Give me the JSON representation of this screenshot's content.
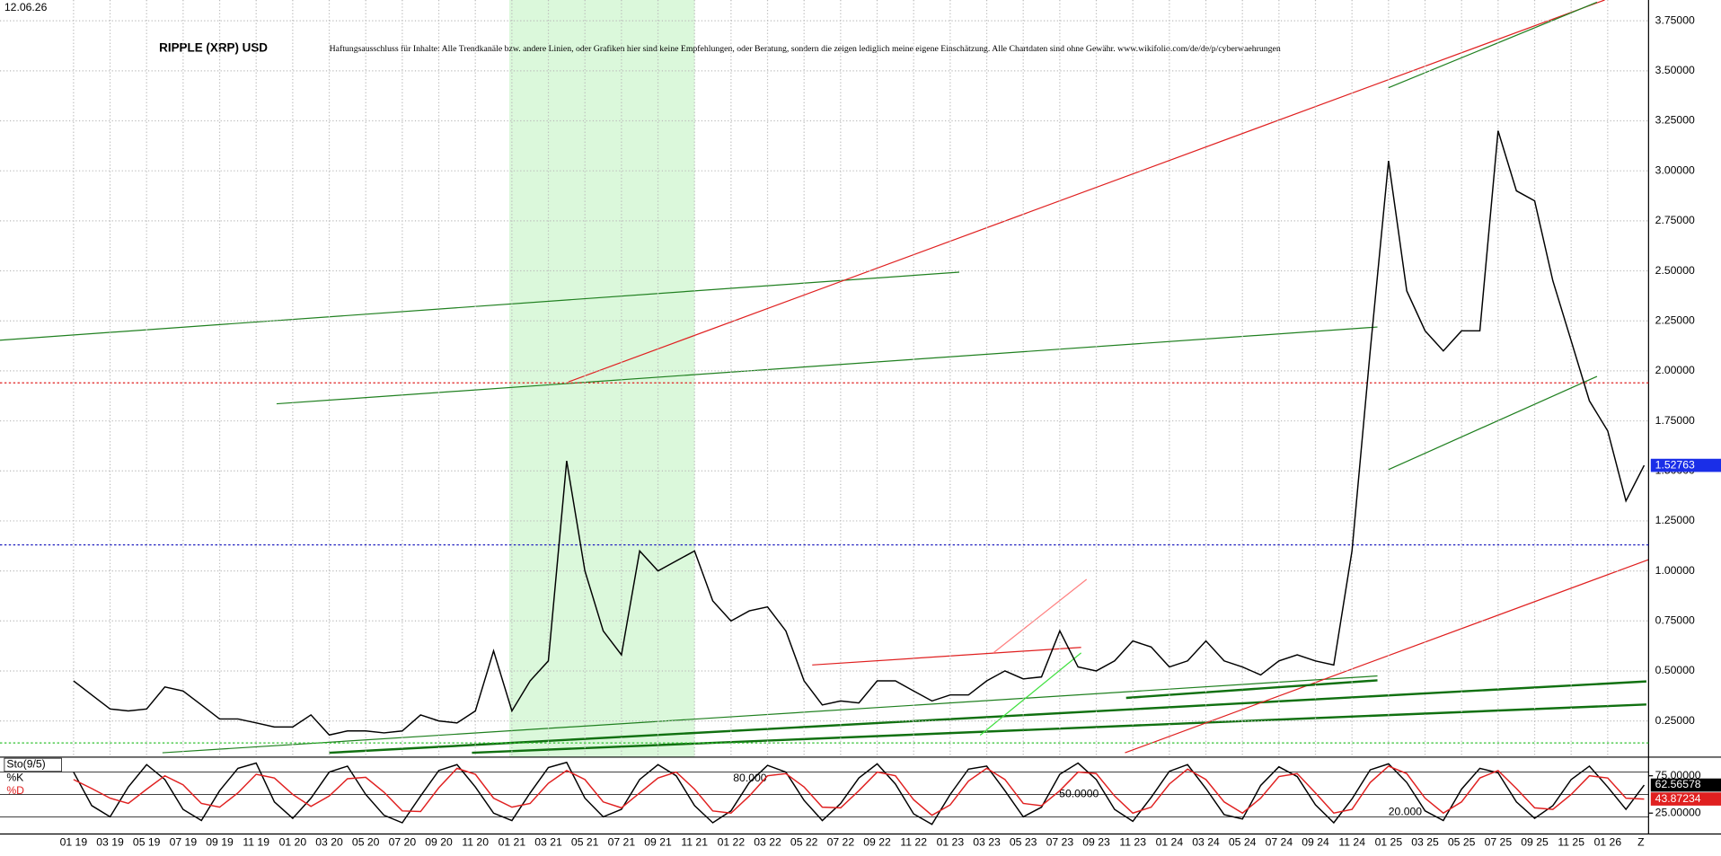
{
  "date_stamp": "12.06.26",
  "disclaimer": "Haftungsausschluss für Inhalte: Alle Trendkanäle bzw. andere Linien, oder Grafiken hier sind keine Empfehlungen, oder Beratung, sondern die zeigen lediglich meine eigene Einschätzung. Alle Chartdaten sind ohne Gewähr.  www.wikifolio.com/de/de/p/cyberwaehrungen",
  "x_axis_end_label": "Z",
  "chart_data": [
    {
      "type": "line",
      "title": "RIPPLE (XRP) USD",
      "grid": true,
      "categories": [
        "01 19",
        null,
        "03 19",
        null,
        "05 19",
        null,
        "07 19",
        null,
        "09 19",
        null,
        "11 19",
        null,
        "01 20",
        null,
        "03 20",
        null,
        "05 20",
        null,
        "07 20",
        null,
        "09 20",
        null,
        "11 20",
        null,
        "01 21",
        null,
        "03 21",
        null,
        "05 21",
        null,
        "07 21",
        null,
        "09 21",
        null,
        "11 21",
        null,
        "01 22",
        null,
        "03 22",
        null,
        "05 22",
        null,
        "07 22",
        null,
        "09 22",
        null,
        "11 22",
        null,
        "01 23",
        null,
        "03 23",
        null,
        "05 23",
        null,
        "07 23",
        null,
        "09 23",
        null,
        "11 23",
        null,
        "01 24",
        null,
        "03 24",
        null,
        "05 24",
        null,
        "07 24",
        null,
        "09 24",
        null,
        "11 24",
        null,
        "01 25",
        null,
        "03 25",
        null,
        "05 25",
        null,
        "07 25",
        null,
        "09 25",
        null,
        "11 25",
        null,
        "01 26",
        null,
        null
      ],
      "series": [
        {
          "name": "XRP",
          "color": "#000000",
          "values": [
            0.45,
            0.38,
            0.31,
            0.3,
            0.31,
            0.42,
            0.4,
            0.33,
            0.26,
            0.26,
            0.24,
            0.22,
            0.22,
            0.28,
            0.18,
            0.2,
            0.2,
            0.19,
            0.2,
            0.28,
            0.25,
            0.24,
            0.3,
            0.6,
            0.3,
            0.45,
            0.55,
            1.55,
            1.0,
            0.7,
            0.58,
            1.1,
            1.0,
            1.05,
            1.1,
            0.85,
            0.75,
            0.8,
            0.82,
            0.7,
            0.45,
            0.33,
            0.35,
            0.34,
            0.45,
            0.45,
            0.4,
            0.35,
            0.38,
            0.38,
            0.45,
            0.5,
            0.46,
            0.47,
            0.7,
            0.52,
            0.5,
            0.55,
            0.65,
            0.62,
            0.52,
            0.55,
            0.65,
            0.55,
            0.52,
            0.48,
            0.55,
            0.58,
            0.55,
            0.53,
            1.1,
            2.1,
            3.05,
            2.4,
            2.2,
            2.1,
            2.2,
            2.2,
            3.2,
            2.9,
            2.85,
            2.45,
            2.15,
            1.85,
            1.7,
            1.35,
            1.52763
          ]
        }
      ],
      "ylim": [
        0.069,
        3.854
      ],
      "yticks": [
        {
          "value": 0.25,
          "label": "0.25000"
        },
        {
          "value": 0.5,
          "label": "0.50000"
        },
        {
          "value": 0.75,
          "label": "0.75000"
        },
        {
          "value": 1,
          "label": "1.00000"
        },
        {
          "value": 1.25,
          "label": "1.25000"
        },
        {
          "value": 1.5,
          "label": "1.50000"
        },
        {
          "value": 1.75,
          "label": "1.75000"
        },
        {
          "value": 2,
          "label": "2.00000"
        },
        {
          "value": 2.25,
          "label": "2.25000"
        },
        {
          "value": 2.5,
          "label": "2.50000"
        },
        {
          "value": 2.75,
          "label": "2.75000"
        },
        {
          "value": 3,
          "label": "3.00000"
        },
        {
          "value": 3.25,
          "label": "3.25000"
        },
        {
          "value": 3.5,
          "label": "3.50000"
        },
        {
          "value": 3.75,
          "label": "3.75000"
        }
      ],
      "reference_lines": [
        {
          "value": 1.94,
          "color": "#e02020"
        },
        {
          "value": 1.13,
          "color": "#2020c0"
        },
        {
          "value": 0.14,
          "color": "#30c030"
        }
      ]
    },
    {
      "type": "line",
      "title": "Sto(9/5)",
      "ylim": [
        0,
        100
      ],
      "yticks": [
        {
          "value": 75,
          "label": "75.00000"
        },
        {
          "value": 25,
          "label": "25.00000"
        }
      ],
      "levels": [
        {
          "value": 80,
          "label": "80.000"
        },
        {
          "value": 50,
          "label": "50.0000"
        },
        {
          "value": 20,
          "label": "20.000"
        }
      ],
      "series": [
        {
          "name": "%K",
          "color": "#000000",
          "values": [
            80,
            35,
            20,
            60,
            90,
            70,
            30,
            15,
            55,
            85,
            92,
            40,
            18,
            45,
            80,
            88,
            50,
            22,
            12,
            48,
            82,
            90,
            60,
            25,
            15,
            52,
            86,
            93,
            45,
            20,
            30,
            70,
            90,
            75,
            35,
            12,
            28,
            66,
            89,
            80,
            42,
            15,
            38,
            72,
            91,
            64,
            24,
            10,
            50,
            84,
            88,
            55,
            20,
            33,
            77,
            92,
            70,
            30,
            14,
            46,
            81,
            90,
            58,
            23,
            17,
            62,
            87,
            74,
            36,
            12,
            44,
            83,
            91,
            66,
            28,
            15,
            57,
            85,
            79,
            40,
            18,
            35,
            70,
            88,
            60,
            30,
            62.56578
          ]
        },
        {
          "name": "%D",
          "color": "#e02020",
          "values": [
            70,
            58,
            45,
            38,
            57,
            75,
            63,
            38,
            33,
            52,
            77,
            72,
            50,
            34,
            48,
            71,
            73,
            53,
            28,
            27,
            59,
            85,
            77,
            45,
            33,
            38,
            65,
            82,
            70,
            40,
            32,
            52,
            72,
            80,
            57,
            28,
            25,
            48,
            75,
            78,
            60,
            33,
            32,
            55,
            80,
            75,
            43,
            22,
            36,
            68,
            85,
            70,
            38,
            35,
            55,
            80,
            78,
            48,
            25,
            33,
            64,
            84,
            70,
            40,
            25,
            45,
            74,
            78,
            52,
            25,
            30,
            66,
            88,
            78,
            45,
            25,
            40,
            72,
            82,
            58,
            32,
            30,
            50,
            75,
            72,
            45,
            43.87234
          ]
        }
      ]
    }
  ]
}
